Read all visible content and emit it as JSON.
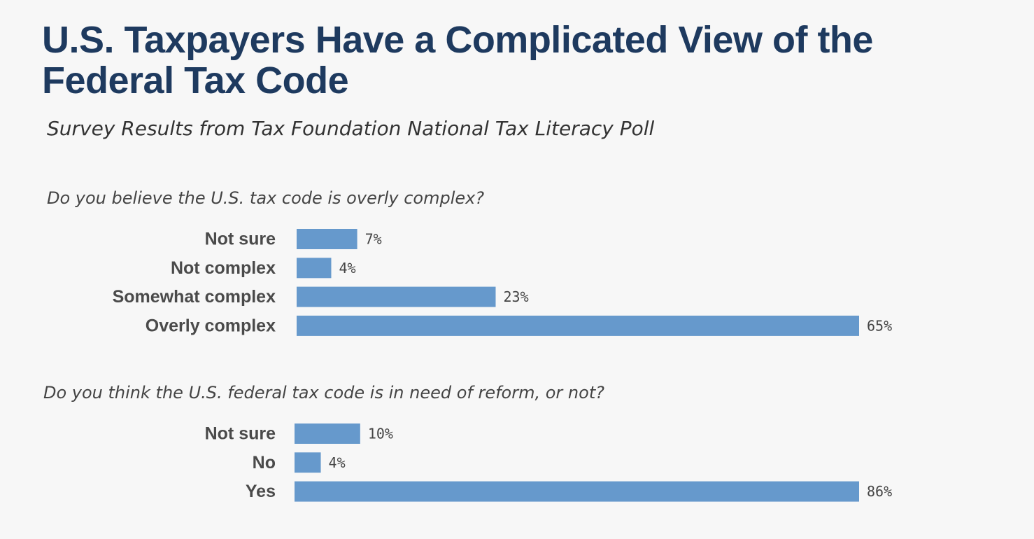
{
  "title": "U.S. Taxpayers Have a Complicated View of the Federal Tax Code",
  "subtitle": "Survey Results from Tax Foundation National Tax Literacy Poll",
  "colors": {
    "background": "#f7f7f7",
    "title": "#1e3a5f",
    "bar": "#6699cc"
  },
  "chart_data": [
    {
      "type": "bar",
      "orientation": "horizontal",
      "title": "Do you believe the U.S. tax code is overly complex?",
      "categories": [
        "Not sure",
        "Not complex",
        "Somewhat complex",
        "Overly complex"
      ],
      "values": [
        7,
        4,
        23,
        65
      ],
      "value_labels": [
        "7%",
        "4%",
        "23%",
        "65%"
      ],
      "unit": "%",
      "xlim": [
        0,
        65
      ],
      "grid": false,
      "legend": "none"
    },
    {
      "type": "bar",
      "orientation": "horizontal",
      "title": "Do you think the U.S. federal tax code is in need of reform, or not?",
      "categories": [
        "Not sure",
        "No",
        "Yes"
      ],
      "values": [
        10,
        4,
        86
      ],
      "value_labels": [
        "10%",
        "4%",
        "86%"
      ],
      "unit": "%",
      "xlim": [
        0,
        86
      ],
      "grid": false,
      "legend": "none"
    }
  ]
}
